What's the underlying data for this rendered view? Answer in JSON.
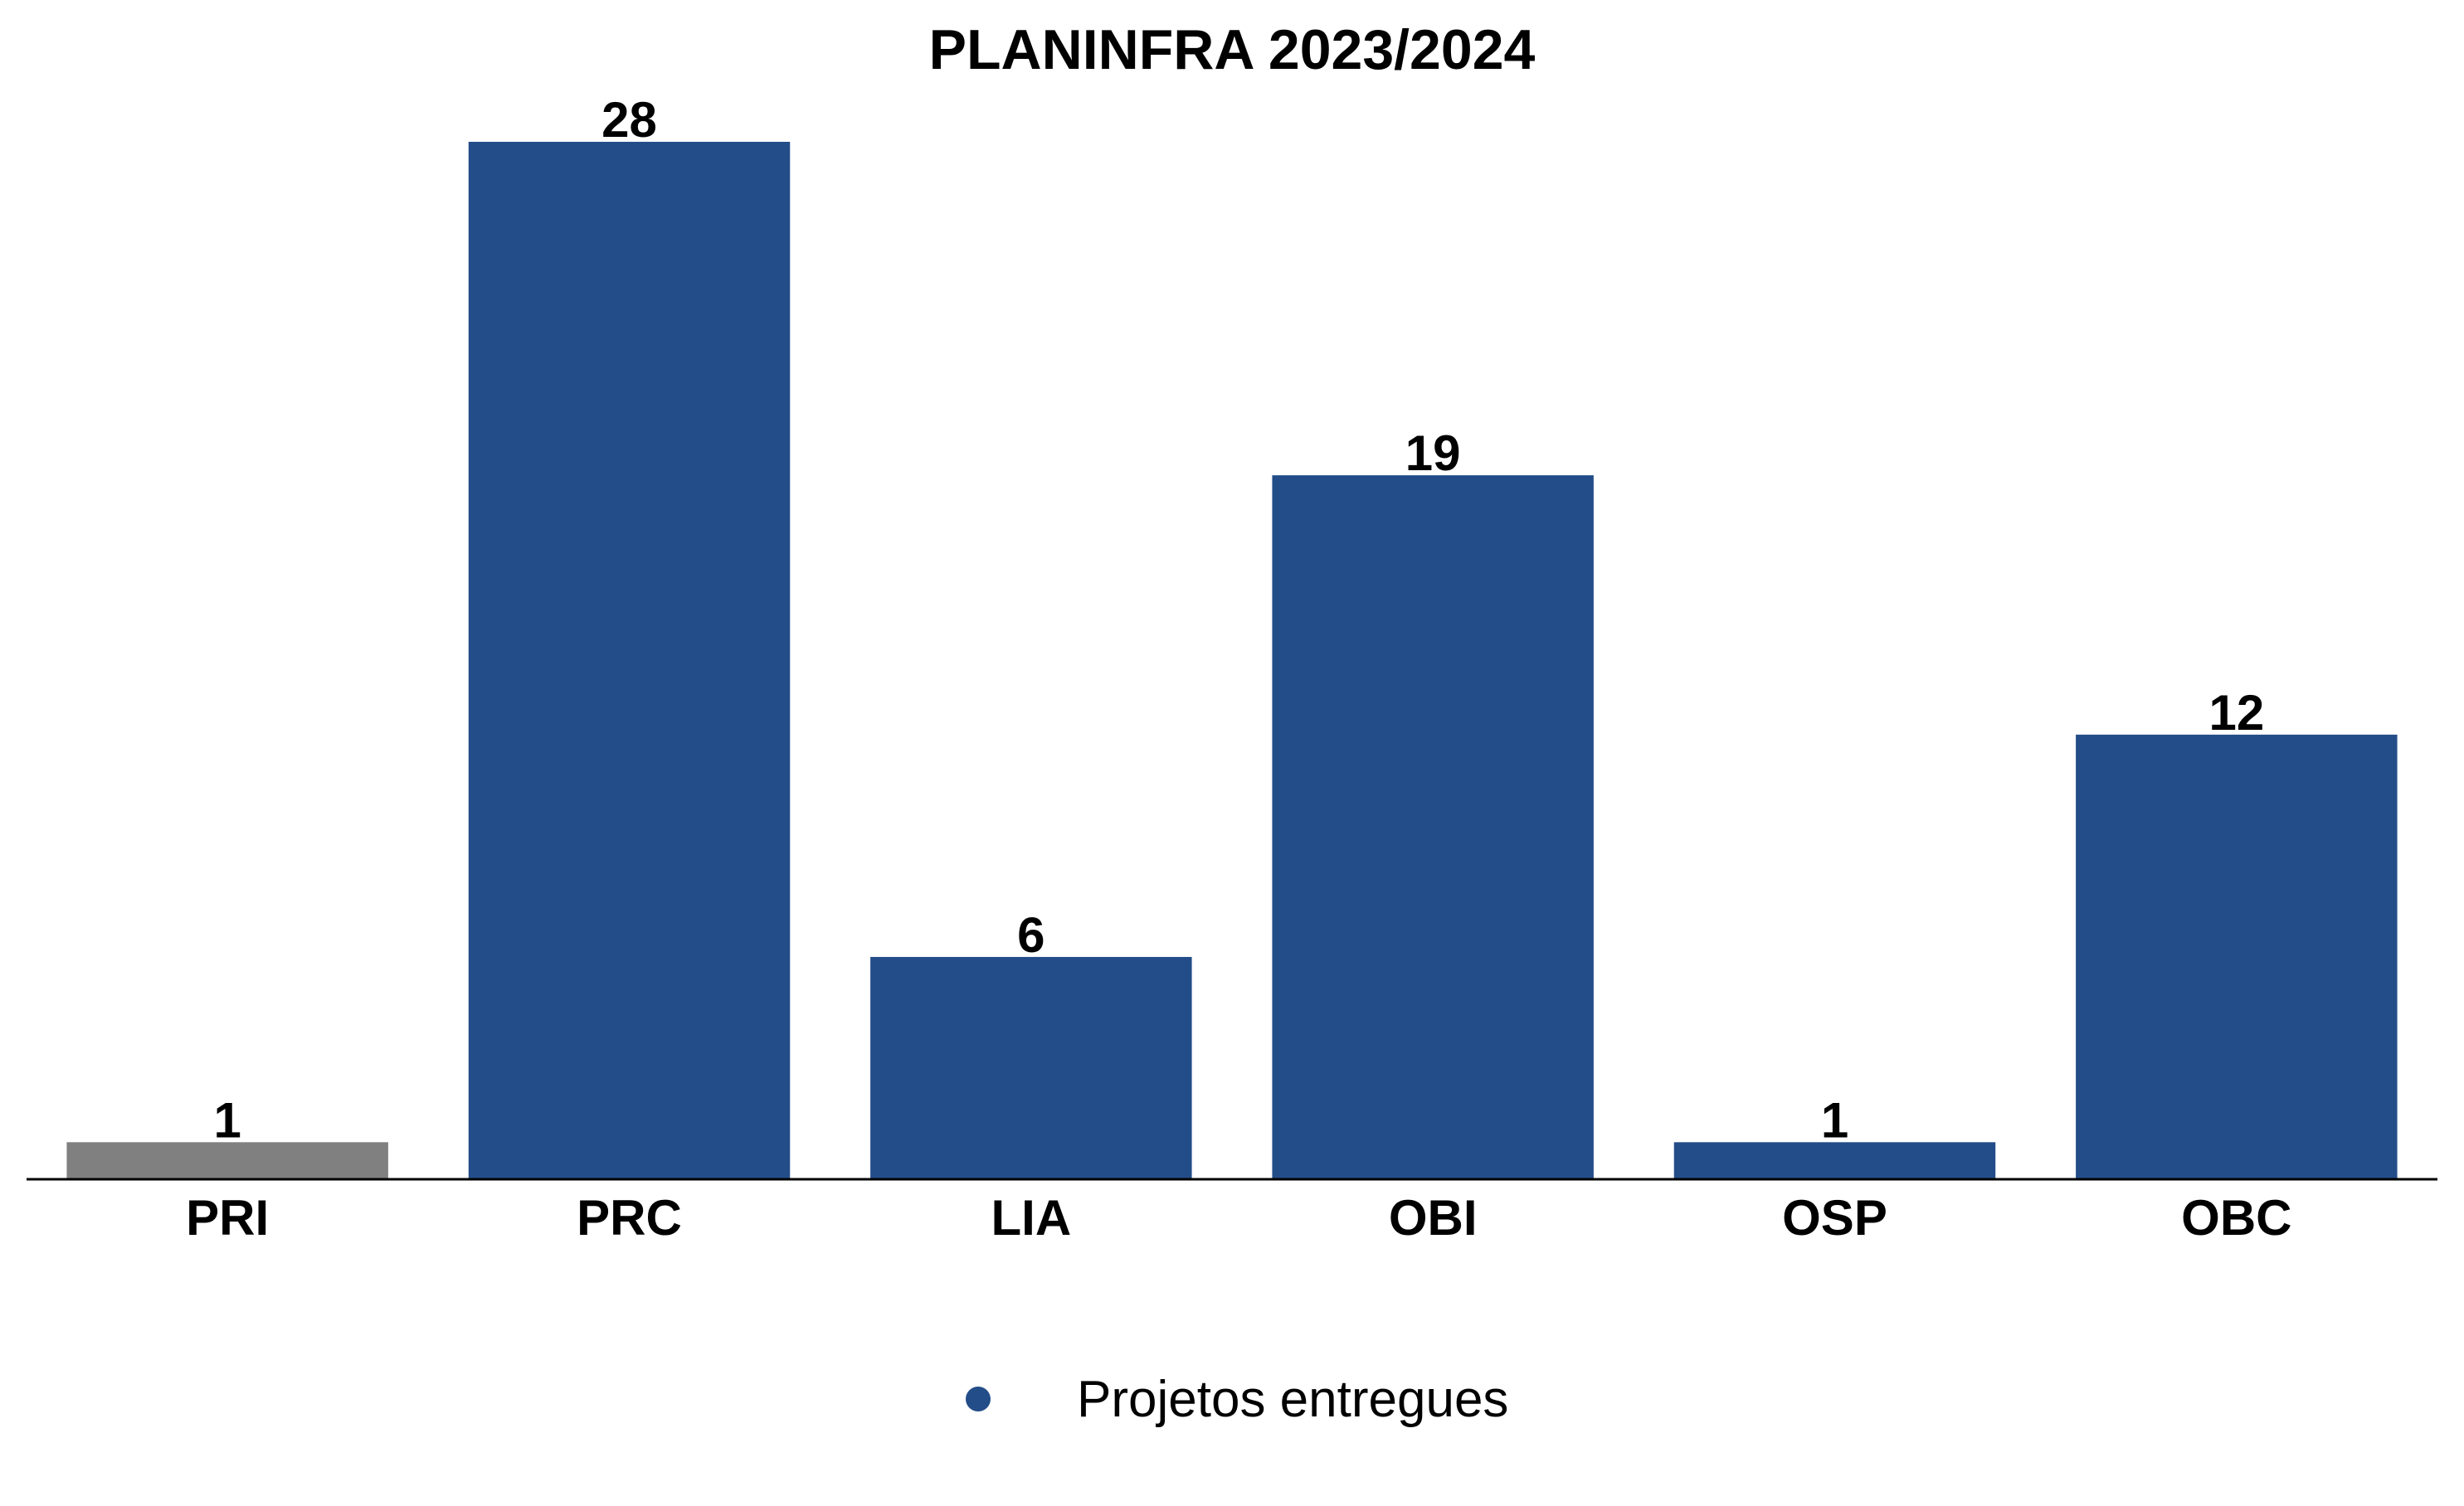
{
  "chart_data": {
    "type": "bar",
    "title": "PLANINFRA 2023/2024",
    "xlabel": "",
    "ylabel": "",
    "categories": [
      "PRI",
      "PRC",
      "LIA",
      "OBI",
      "OSP",
      "OBC"
    ],
    "series": [
      {
        "name": "Projetos entregues",
        "values": [
          1,
          28,
          6,
          19,
          1,
          12
        ],
        "color": "#234d89"
      }
    ],
    "bar_colors": [
      "#808080",
      "#234d89",
      "#234d89",
      "#234d89",
      "#234d89",
      "#234d89"
    ],
    "ylim": [
      0,
      28
    ],
    "grid": false,
    "legend": {
      "position": "bottom-center",
      "marker": "circle"
    }
  }
}
